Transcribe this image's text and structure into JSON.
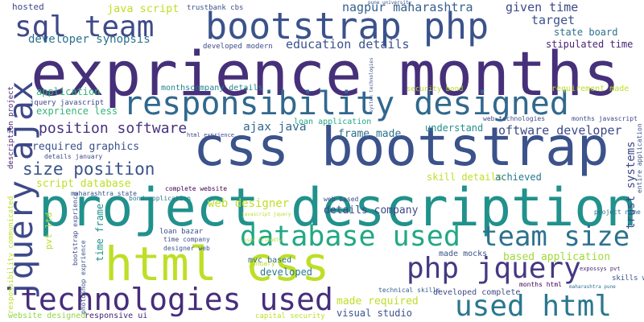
{
  "words": [
    "exprience months",
    "project description",
    "css bootstrap",
    "html css",
    "bootstrap php",
    "responsibility designed",
    "jquery ajax",
    "technologies used",
    "database used",
    "team size",
    "php jquery",
    "used html",
    "sql team",
    "size position",
    "position software",
    "software developer",
    "ajax java",
    "developer synopsis",
    "education details",
    "nagpur maharashtra",
    "java script",
    "given time",
    "target",
    "state board",
    "stipulated time",
    "application",
    "jquery javascript",
    "exprience less",
    "required graphics",
    "script database",
    "web designer",
    "details company",
    "frame made",
    "understand",
    "skill details",
    "achieved",
    "loan application",
    "security bond",
    "requirement made",
    "monthscompany details",
    "developed modern",
    "mvc based",
    "developed",
    "based application",
    "made mocks",
    "made required",
    "visual studio",
    "technical skills",
    "developed complete",
    "months html",
    "skills web",
    "project name",
    "responsive ui",
    "website designed",
    "capital security",
    "hosted",
    "trustbank cbs",
    "complete website",
    "maharashtra state",
    "loan bazar",
    "time company",
    "designer web",
    "pvt ltd",
    "time frame",
    "trust systems",
    "description project",
    "responsibility communicated",
    "photoshop exprience",
    "bootstrap exprience",
    "entire application",
    "months javascript",
    "web technologies",
    "bond application",
    "details january",
    "web based",
    "expossys pvt",
    "maharashtra pune",
    "pune university",
    "january b",
    "html exprience",
    "javascript jquery",
    "user friendly",
    "system technologies"
  ]
}
